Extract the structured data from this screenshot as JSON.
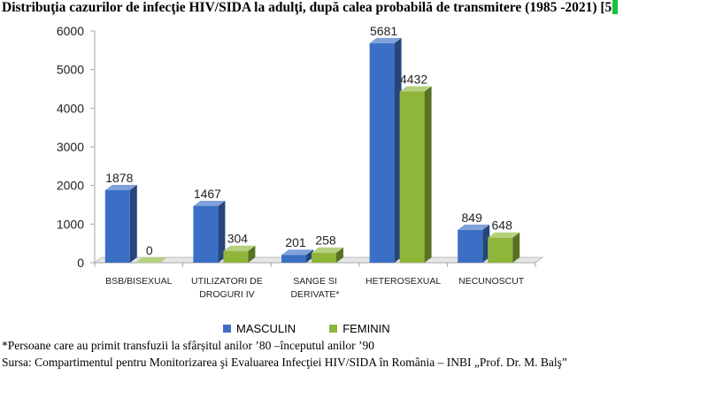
{
  "title": "Distribuţia cazurilor de infecţie HIV/SIDA la adulţi, după calea probabilă de transmitere (1985 -2021) [5",
  "colors": {
    "masculin": "#3b6fc6",
    "feminin": "#8fb63a"
  },
  "chart_data": {
    "type": "bar",
    "categories": [
      [
        "BSB/BISEXUAL"
      ],
      [
        "UTILIZATORI DE",
        "DROGURI IV"
      ],
      [
        "SANGE SI",
        "DERIVATE*"
      ],
      [
        "HETEROSEXUAL"
      ],
      [
        "NECUNOSCUT"
      ]
    ],
    "series": [
      {
        "name": "MASCULIN",
        "values": [
          1878,
          1467,
          201,
          5681,
          849
        ]
      },
      {
        "name": "FEMININ",
        "values": [
          0,
          304,
          258,
          4432,
          648
        ]
      }
    ],
    "ylim": [
      0,
      6000
    ],
    "yticks": [
      0,
      1000,
      2000,
      3000,
      4000,
      5000,
      6000
    ],
    "grid": false,
    "legend": "bottom"
  },
  "footnote": "*Persoane care au primit transfuzii la sfârșitul anilor ’80 –începutul anilor ’90",
  "source": "Sursa: Compartimentul pentru Monitorizarea şi Evaluarea Infecţiei HIV/SIDA în România – INBI „Prof. Dr. M. Balş”"
}
